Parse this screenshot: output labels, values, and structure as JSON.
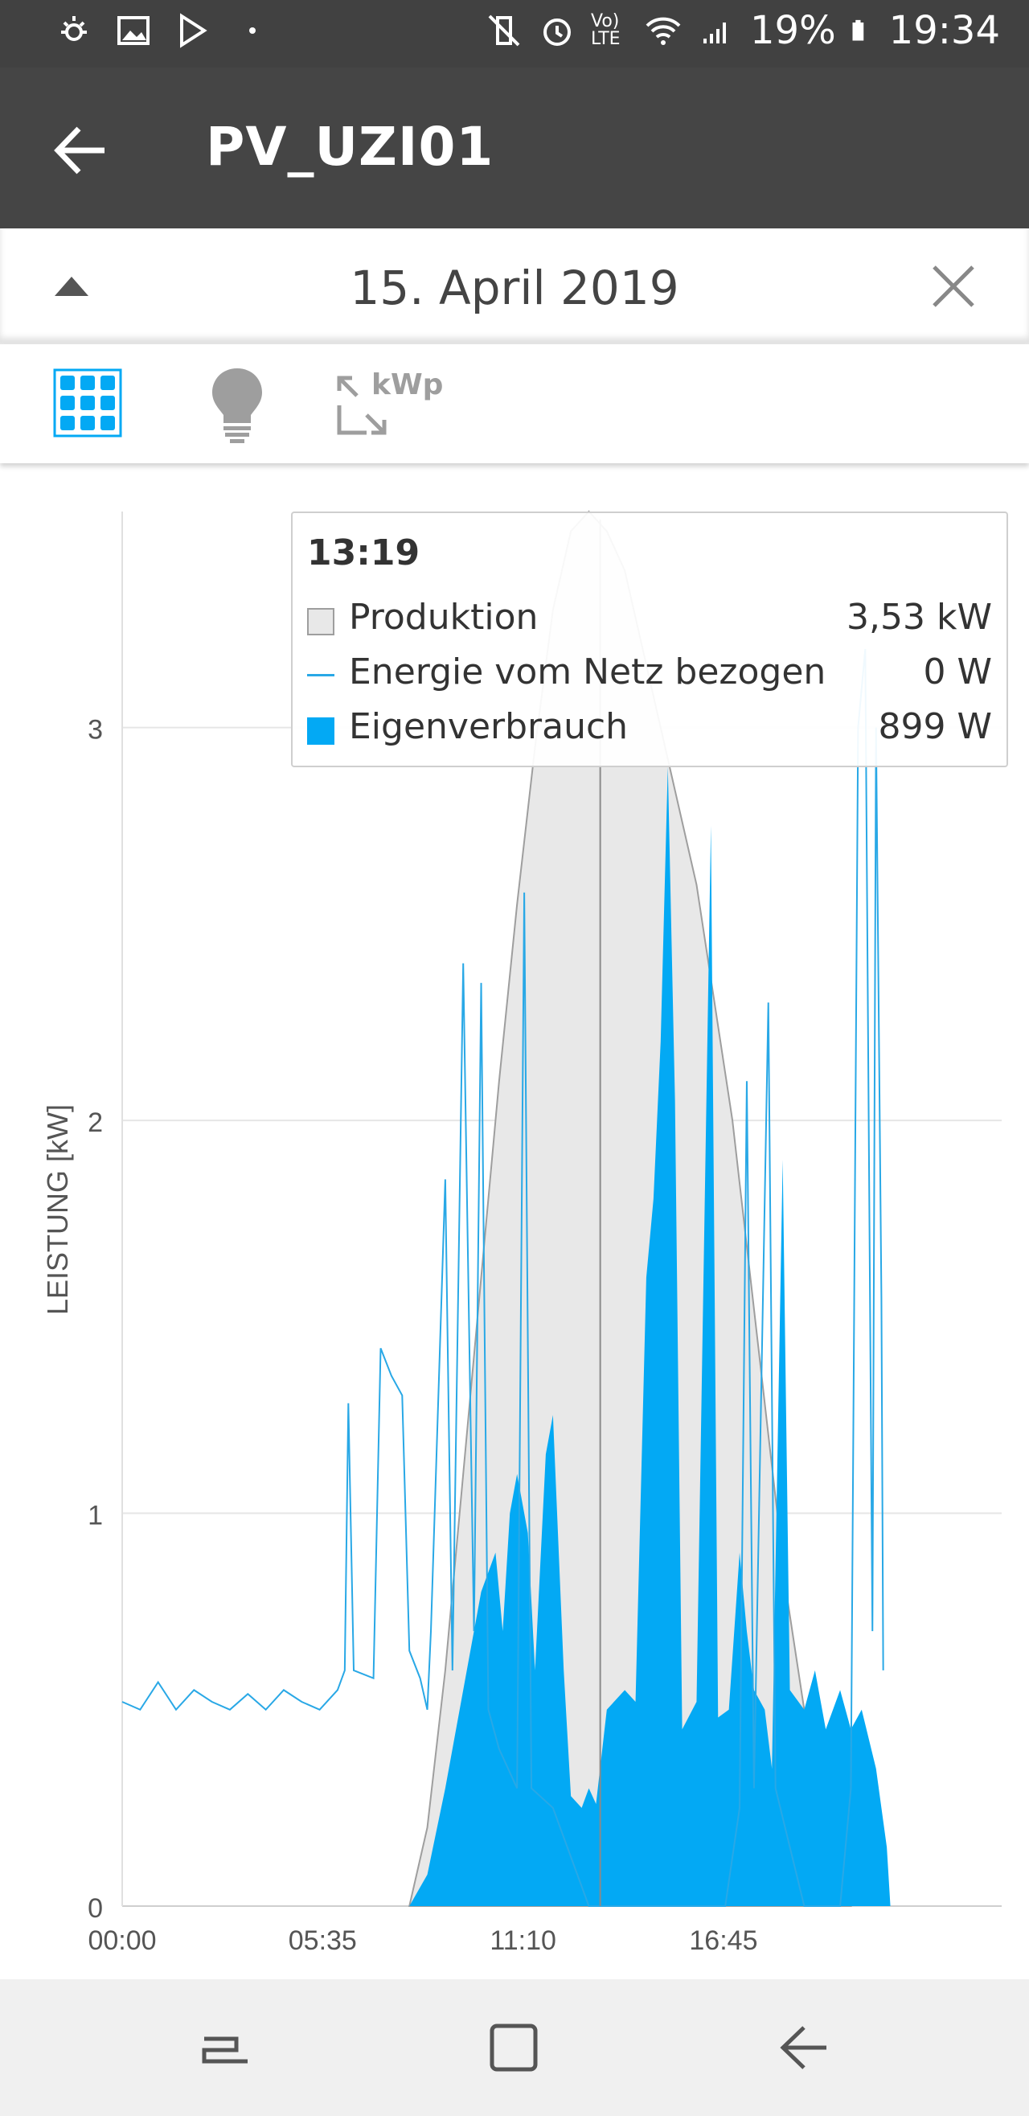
{
  "status_bar": {
    "battery": "19%",
    "time": "19:34",
    "network": "Vo) LTE",
    "icons": [
      "sun-icon",
      "image-icon",
      "play-store-icon",
      "dot-icon",
      "mute-vibrate-icon",
      "alarm-icon",
      "volte-icon",
      "wifi-icon",
      "signal-icon",
      "battery-icon"
    ]
  },
  "app_bar": {
    "title": "PV_UZI01",
    "back_icon": "arrow-left-icon"
  },
  "date_bar": {
    "date": "15. April 2019",
    "collapse_icon": "triangle-up-icon",
    "close_icon": "close-icon"
  },
  "toolbar": {
    "kwp_label": "kWp",
    "icons": [
      "solar-panel-icon",
      "lightbulb-icon",
      "resize-kwp-icon"
    ]
  },
  "tooltip": {
    "time": "13:19",
    "rows": [
      {
        "label": "Produktion",
        "value": "3,53 kW"
      },
      {
        "label": "Energie vom Netz bezogen",
        "value": "0 W"
      },
      {
        "label": "Eigenverbrauch",
        "value": "899 W"
      }
    ]
  },
  "colors": {
    "production_fill": "#e8e8e8",
    "production_line": "#9e9e9e",
    "grid_line": "#29a8e6",
    "self_consumption": "#03a9f4",
    "appbar": "#454545"
  },
  "chart_data": {
    "type": "area",
    "ylabel": "LEISTUNG [kW]",
    "ylim": [
      0,
      3.55
    ],
    "yticks": [
      0,
      1,
      2,
      3
    ],
    "xlim": [
      0,
      24.5
    ],
    "xticks": [
      {
        "value": 0,
        "label": "00:00"
      },
      {
        "value": 5.583,
        "label": "05:35"
      },
      {
        "value": 11.167,
        "label": "11:10"
      },
      {
        "value": 16.75,
        "label": "16:45"
      }
    ],
    "cursor_x": 13.317,
    "series": [
      {
        "name": "Produktion",
        "style": "area",
        "points": [
          [
            8.0,
            0
          ],
          [
            8.5,
            0.2
          ],
          [
            9.0,
            0.6
          ],
          [
            9.5,
            1.1
          ],
          [
            10.0,
            1.6
          ],
          [
            10.5,
            2.1
          ],
          [
            11.0,
            2.55
          ],
          [
            11.5,
            2.95
          ],
          [
            12.0,
            3.3
          ],
          [
            12.5,
            3.5
          ],
          [
            13.0,
            3.55
          ],
          [
            13.5,
            3.5
          ],
          [
            14.0,
            3.4
          ],
          [
            14.5,
            3.2
          ],
          [
            15.0,
            3.0
          ],
          [
            15.5,
            2.8
          ],
          [
            16.0,
            2.6
          ],
          [
            16.5,
            2.3
          ],
          [
            17.0,
            2.0
          ],
          [
            17.5,
            1.6
          ],
          [
            18.0,
            1.2
          ],
          [
            18.5,
            0.8
          ],
          [
            19.0,
            0.5
          ],
          [
            19.5,
            0.3
          ],
          [
            20.0,
            0.1
          ],
          [
            20.3,
            0
          ]
        ]
      },
      {
        "name": "Energie vom Netz bezogen",
        "style": "line",
        "points": [
          [
            0,
            0.52
          ],
          [
            0.5,
            0.5
          ],
          [
            1.0,
            0.57
          ],
          [
            1.5,
            0.5
          ],
          [
            2.0,
            0.55
          ],
          [
            2.5,
            0.52
          ],
          [
            3.0,
            0.5
          ],
          [
            3.5,
            0.54
          ],
          [
            4.0,
            0.5
          ],
          [
            4.5,
            0.55
          ],
          [
            5.0,
            0.52
          ],
          [
            5.5,
            0.5
          ],
          [
            6.0,
            0.55
          ],
          [
            6.2,
            0.6
          ],
          [
            6.3,
            1.28
          ],
          [
            6.45,
            0.6
          ],
          [
            7.0,
            0.58
          ],
          [
            7.2,
            1.42
          ],
          [
            7.5,
            1.35
          ],
          [
            7.8,
            1.3
          ],
          [
            8.0,
            0.65
          ],
          [
            8.3,
            0.58
          ],
          [
            8.5,
            0.5
          ],
          [
            8.6,
            0.7
          ],
          [
            9.0,
            1.85
          ],
          [
            9.2,
            0.6
          ],
          [
            9.5,
            2.4
          ],
          [
            9.8,
            0.7
          ],
          [
            10.0,
            2.35
          ],
          [
            10.2,
            0.5
          ],
          [
            10.5,
            0.4
          ],
          [
            11.0,
            0.3
          ],
          [
            11.2,
            2.58
          ],
          [
            11.4,
            0.3
          ],
          [
            12.0,
            0.25
          ],
          [
            13.0,
            0.0
          ],
          [
            14.0,
            0.0
          ],
          [
            15.0,
            0.0
          ],
          [
            16.0,
            0.0
          ],
          [
            16.5,
            0.0
          ],
          [
            16.8,
            0.0
          ],
          [
            17.2,
            0.25
          ],
          [
            17.4,
            2.1
          ],
          [
            17.6,
            0.3
          ],
          [
            18.0,
            2.3
          ],
          [
            18.2,
            0.3
          ],
          [
            19.0,
            0.0
          ],
          [
            20.0,
            0.0
          ],
          [
            20.3,
            0.3
          ],
          [
            20.5,
            3.0
          ],
          [
            20.7,
            3.2
          ],
          [
            20.9,
            0.7
          ],
          [
            21.0,
            3.0
          ],
          [
            21.15,
            1.55
          ],
          [
            21.2,
            0.6
          ]
        ]
      },
      {
        "name": "Eigenverbrauch",
        "style": "area",
        "points": [
          [
            8.0,
            0
          ],
          [
            8.5,
            0.08
          ],
          [
            9.0,
            0.3
          ],
          [
            9.5,
            0.55
          ],
          [
            10.0,
            0.8
          ],
          [
            10.4,
            0.9
          ],
          [
            10.6,
            0.7
          ],
          [
            10.8,
            1.0
          ],
          [
            11.0,
            1.1
          ],
          [
            11.3,
            0.95
          ],
          [
            11.5,
            0.6
          ],
          [
            11.8,
            1.15
          ],
          [
            12.0,
            1.25
          ],
          [
            12.3,
            0.6
          ],
          [
            12.5,
            0.28
          ],
          [
            12.8,
            0.25
          ],
          [
            13.0,
            0.3
          ],
          [
            13.2,
            0.26
          ],
          [
            13.5,
            0.5
          ],
          [
            14.0,
            0.55
          ],
          [
            14.3,
            0.52
          ],
          [
            14.6,
            1.6
          ],
          [
            14.8,
            1.8
          ],
          [
            15.0,
            2.2
          ],
          [
            15.2,
            2.9
          ],
          [
            15.4,
            2.05
          ],
          [
            15.6,
            0.45
          ],
          [
            16.0,
            0.52
          ],
          [
            16.4,
            2.75
          ],
          [
            16.6,
            0.48
          ],
          [
            16.9,
            0.5
          ],
          [
            17.2,
            0.9
          ],
          [
            17.4,
            0.7
          ],
          [
            17.6,
            0.55
          ],
          [
            17.9,
            0.5
          ],
          [
            18.1,
            0.35
          ],
          [
            18.4,
            1.9
          ],
          [
            18.6,
            0.55
          ],
          [
            19.0,
            0.5
          ],
          [
            19.3,
            0.6
          ],
          [
            19.6,
            0.45
          ],
          [
            20.0,
            0.55
          ],
          [
            20.3,
            0.45
          ],
          [
            20.6,
            0.5
          ],
          [
            21.0,
            0.35
          ],
          [
            21.3,
            0.15
          ],
          [
            21.4,
            0
          ]
        ]
      }
    ]
  }
}
